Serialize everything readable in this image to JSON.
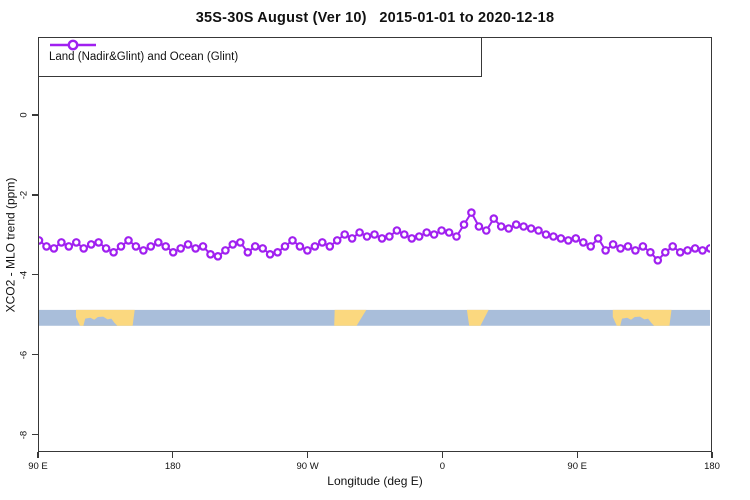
{
  "title": "35S-30S August (Ver 10)   2015-01-01 to 2020-12-18",
  "legend": {
    "label": "Land (Nadir&Glint) and Ocean (Glint)",
    "marker": "open-circle-on-line",
    "marker_color": "#A020F0"
  },
  "axes": {
    "x_label": "Longitude (deg E)",
    "y_label": "XCO2 - MLO trend (ppm)",
    "x_range": [
      90,
      540
    ],
    "y_range": [
      -8.43,
      1.95
    ],
    "x_ticks": [
      {
        "lon": 90,
        "label": "90 E"
      },
      {
        "lon": 180,
        "label": "180"
      },
      {
        "lon": 270,
        "label": "90 W"
      },
      {
        "lon": 360,
        "label": "0"
      },
      {
        "lon": 450,
        "label": "90 E"
      },
      {
        "lon": 540,
        "label": "180"
      }
    ],
    "y_ticks": [
      {
        "value": 0,
        "label": "0"
      },
      {
        "value": -2,
        "label": "-2"
      },
      {
        "value": -4,
        "label": "-4"
      },
      {
        "value": -6,
        "label": "-6"
      },
      {
        "value": -8,
        "label": "-8"
      }
    ],
    "grid": "off"
  },
  "chart_data": {
    "type": "line",
    "title": "35S-30S August (Ver 10)   2015-01-01 to 2020-12-18",
    "xlabel": "Longitude (deg E)",
    "ylabel": "XCO2 - MLO trend (ppm)",
    "xlim": [
      90,
      540
    ],
    "ylim": [
      -8.43,
      1.95
    ],
    "legend_position": "top-left",
    "series": [
      {
        "name": "Land (Nadir&Glint) and Ocean (Glint)",
        "color": "#A020F0",
        "marker": "open-circle",
        "x_start_deg_e": 90,
        "x_step_deg": 5,
        "y_ppm": [
          -3.15,
          -3.3,
          -3.35,
          -3.2,
          -3.3,
          -3.2,
          -3.35,
          -3.25,
          -3.2,
          -3.35,
          -3.45,
          -3.3,
          -3.15,
          -3.3,
          -3.4,
          -3.3,
          -3.2,
          -3.3,
          -3.45,
          -3.35,
          -3.25,
          -3.35,
          -3.3,
          -3.5,
          -3.55,
          -3.4,
          -3.25,
          -3.2,
          -3.45,
          -3.3,
          -3.35,
          -3.5,
          -3.45,
          -3.3,
          -3.15,
          -3.3,
          -3.4,
          -3.3,
          -3.2,
          -3.3,
          -3.15,
          -3.0,
          -3.1,
          -2.95,
          -3.05,
          -3.0,
          -3.1,
          -3.05,
          -2.9,
          -3.0,
          -3.1,
          -3.05,
          -2.95,
          -3.0,
          -2.9,
          -2.95,
          -3.05,
          -2.75,
          -2.45,
          -2.8,
          -2.9,
          -2.6,
          -2.8,
          -2.85,
          -2.75,
          -2.8,
          -2.85,
          -2.9,
          -3.0,
          -3.05,
          -3.1,
          -3.15,
          -3.1,
          -3.2,
          -3.3,
          -3.1,
          -3.4,
          -3.25,
          -3.35,
          -3.3,
          -3.4,
          -3.3,
          -3.45,
          -3.65,
          -3.45,
          -3.3,
          -3.45,
          -3.4,
          -3.35,
          -3.4,
          -3.35
        ]
      }
    ],
    "map_band": {
      "description": "land/ocean strip for latitude band 35S-30S",
      "y_top_ppm": -4.9,
      "y_bottom_ppm": -5.3,
      "ocean_color": "#A9BEDA",
      "land_color": "#FBD87F",
      "land_patches": [
        {
          "name": "australia-west-pass",
          "polygon": [
            [
              114.8,
              0
            ],
            [
              154.2,
              0
            ],
            [
              152.8,
              1
            ],
            [
              117.5,
              1
            ],
            [
              114.8,
              0.45
            ]
          ]
        },
        {
          "name": "south-america",
          "polygon": [
            [
              288.3,
              0
            ],
            [
              309.5,
              0
            ],
            [
              303.0,
              1
            ],
            [
              288.0,
              1
            ]
          ]
        },
        {
          "name": "south-africa",
          "polygon": [
            [
              377.0,
              0
            ],
            [
              391.5,
              0
            ],
            [
              386.0,
              1
            ],
            [
              378.5,
              1
            ]
          ]
        },
        {
          "name": "australia-east-pass",
          "polygon": [
            [
              474.8,
              0
            ],
            [
              514.2,
              0
            ],
            [
              512.8,
              1
            ],
            [
              477.5,
              1
            ],
            [
              474.8,
              0.45
            ]
          ]
        }
      ],
      "ocean_notches": [
        {
          "name": "great-australian-bight-west-pass",
          "polygon": [
            [
              119.8,
              1
            ],
            [
              121.0,
              0.55
            ],
            [
              124.5,
              0.5
            ],
            [
              127.0,
              0.62
            ],
            [
              129.5,
              0.45
            ],
            [
              133.0,
              0.42
            ],
            [
              136.0,
              0.6
            ],
            [
              138.5,
              0.55
            ],
            [
              140.5,
              0.8
            ],
            [
              142.5,
              1
            ]
          ]
        },
        {
          "name": "great-australian-bight-east-pass",
          "polygon": [
            [
              479.8,
              1
            ],
            [
              481.0,
              0.55
            ],
            [
              484.5,
              0.5
            ],
            [
              487.0,
              0.62
            ],
            [
              489.5,
              0.45
            ],
            [
              493.0,
              0.42
            ],
            [
              496.0,
              0.6
            ],
            [
              498.5,
              0.55
            ],
            [
              500.5,
              0.8
            ],
            [
              502.5,
              1
            ]
          ]
        }
      ]
    }
  }
}
